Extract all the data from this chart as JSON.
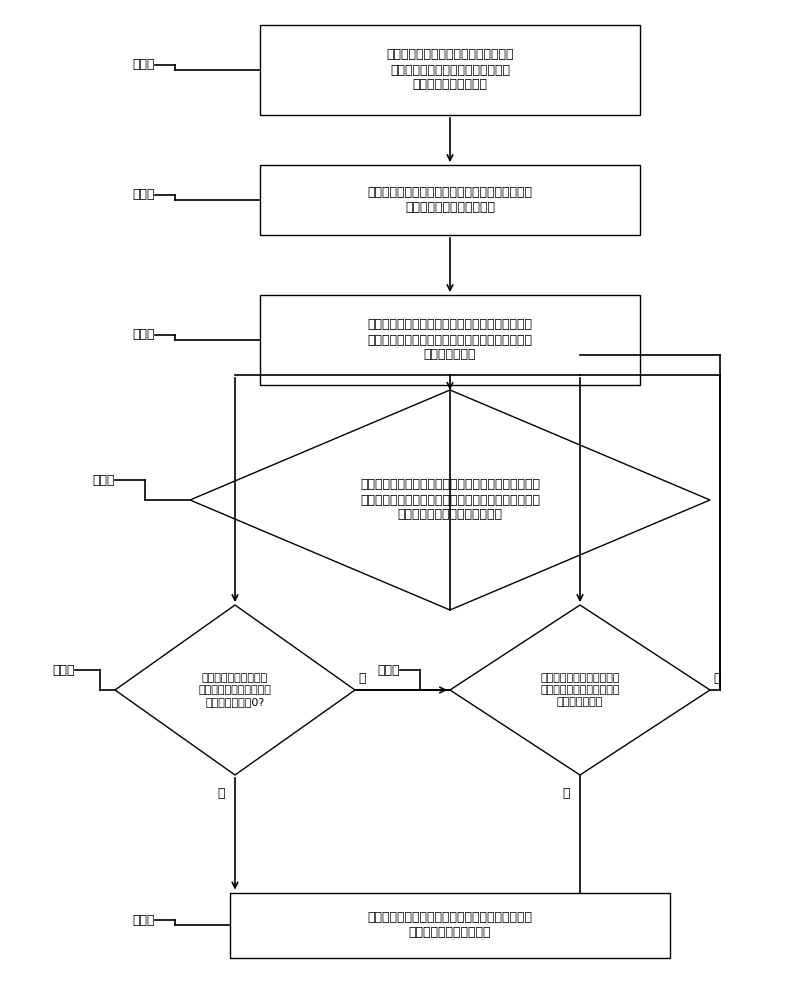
{
  "bg_color": "#ffffff",
  "line_color": "#000000",
  "text_color": "#000000",
  "font_size": 9,
  "label_font_size": 9,
  "step_labels": {
    "step1": "步骤一",
    "step2": "步骤二",
    "step3": "步骤三",
    "step4": "步骤四",
    "step5": "步骤五",
    "step6": "步骤六",
    "step7": "步骤七"
  },
  "box1_text": "根据额定转速、额定转矩和电流极限值\n，确定输入母线电压波动的下限值和\n弱磁控制的最大超前角",
  "box2_text": "对永磁同步电机进行转速闭环控制，转速环输出为\n电流指令，并对其进行限幅",
  "box3_text": "设定超前角初始值，计算当前周期交直轴电流指令\n的初始值，结合转速指令根据电压极限圆方程计算\n出电压值初始值",
  "diamond4_text": "根据实时采集的直流母线电压计算电压比较阈值，电压\n值初始值小于压比较阈值，进入步骤五，电压值初始值\n大于电压比较阈值，进入步骤六",
  "diamond5_text": "超前角减小，计算电压\n值，电压值小于电压比较\n阈值或超前角为0?",
  "diamond6_text": "超前角增大，计算电压值，\n电压值大于电压比较阈值或\n超前角达上限？",
  "box7_text": "将步骤五或六退出循环时的交直轴电流指令作为电\n流环的输入进行闭环控制",
  "no5_label": "否",
  "yes5_label": "是",
  "no6_label": "否",
  "yes6_label": "是"
}
